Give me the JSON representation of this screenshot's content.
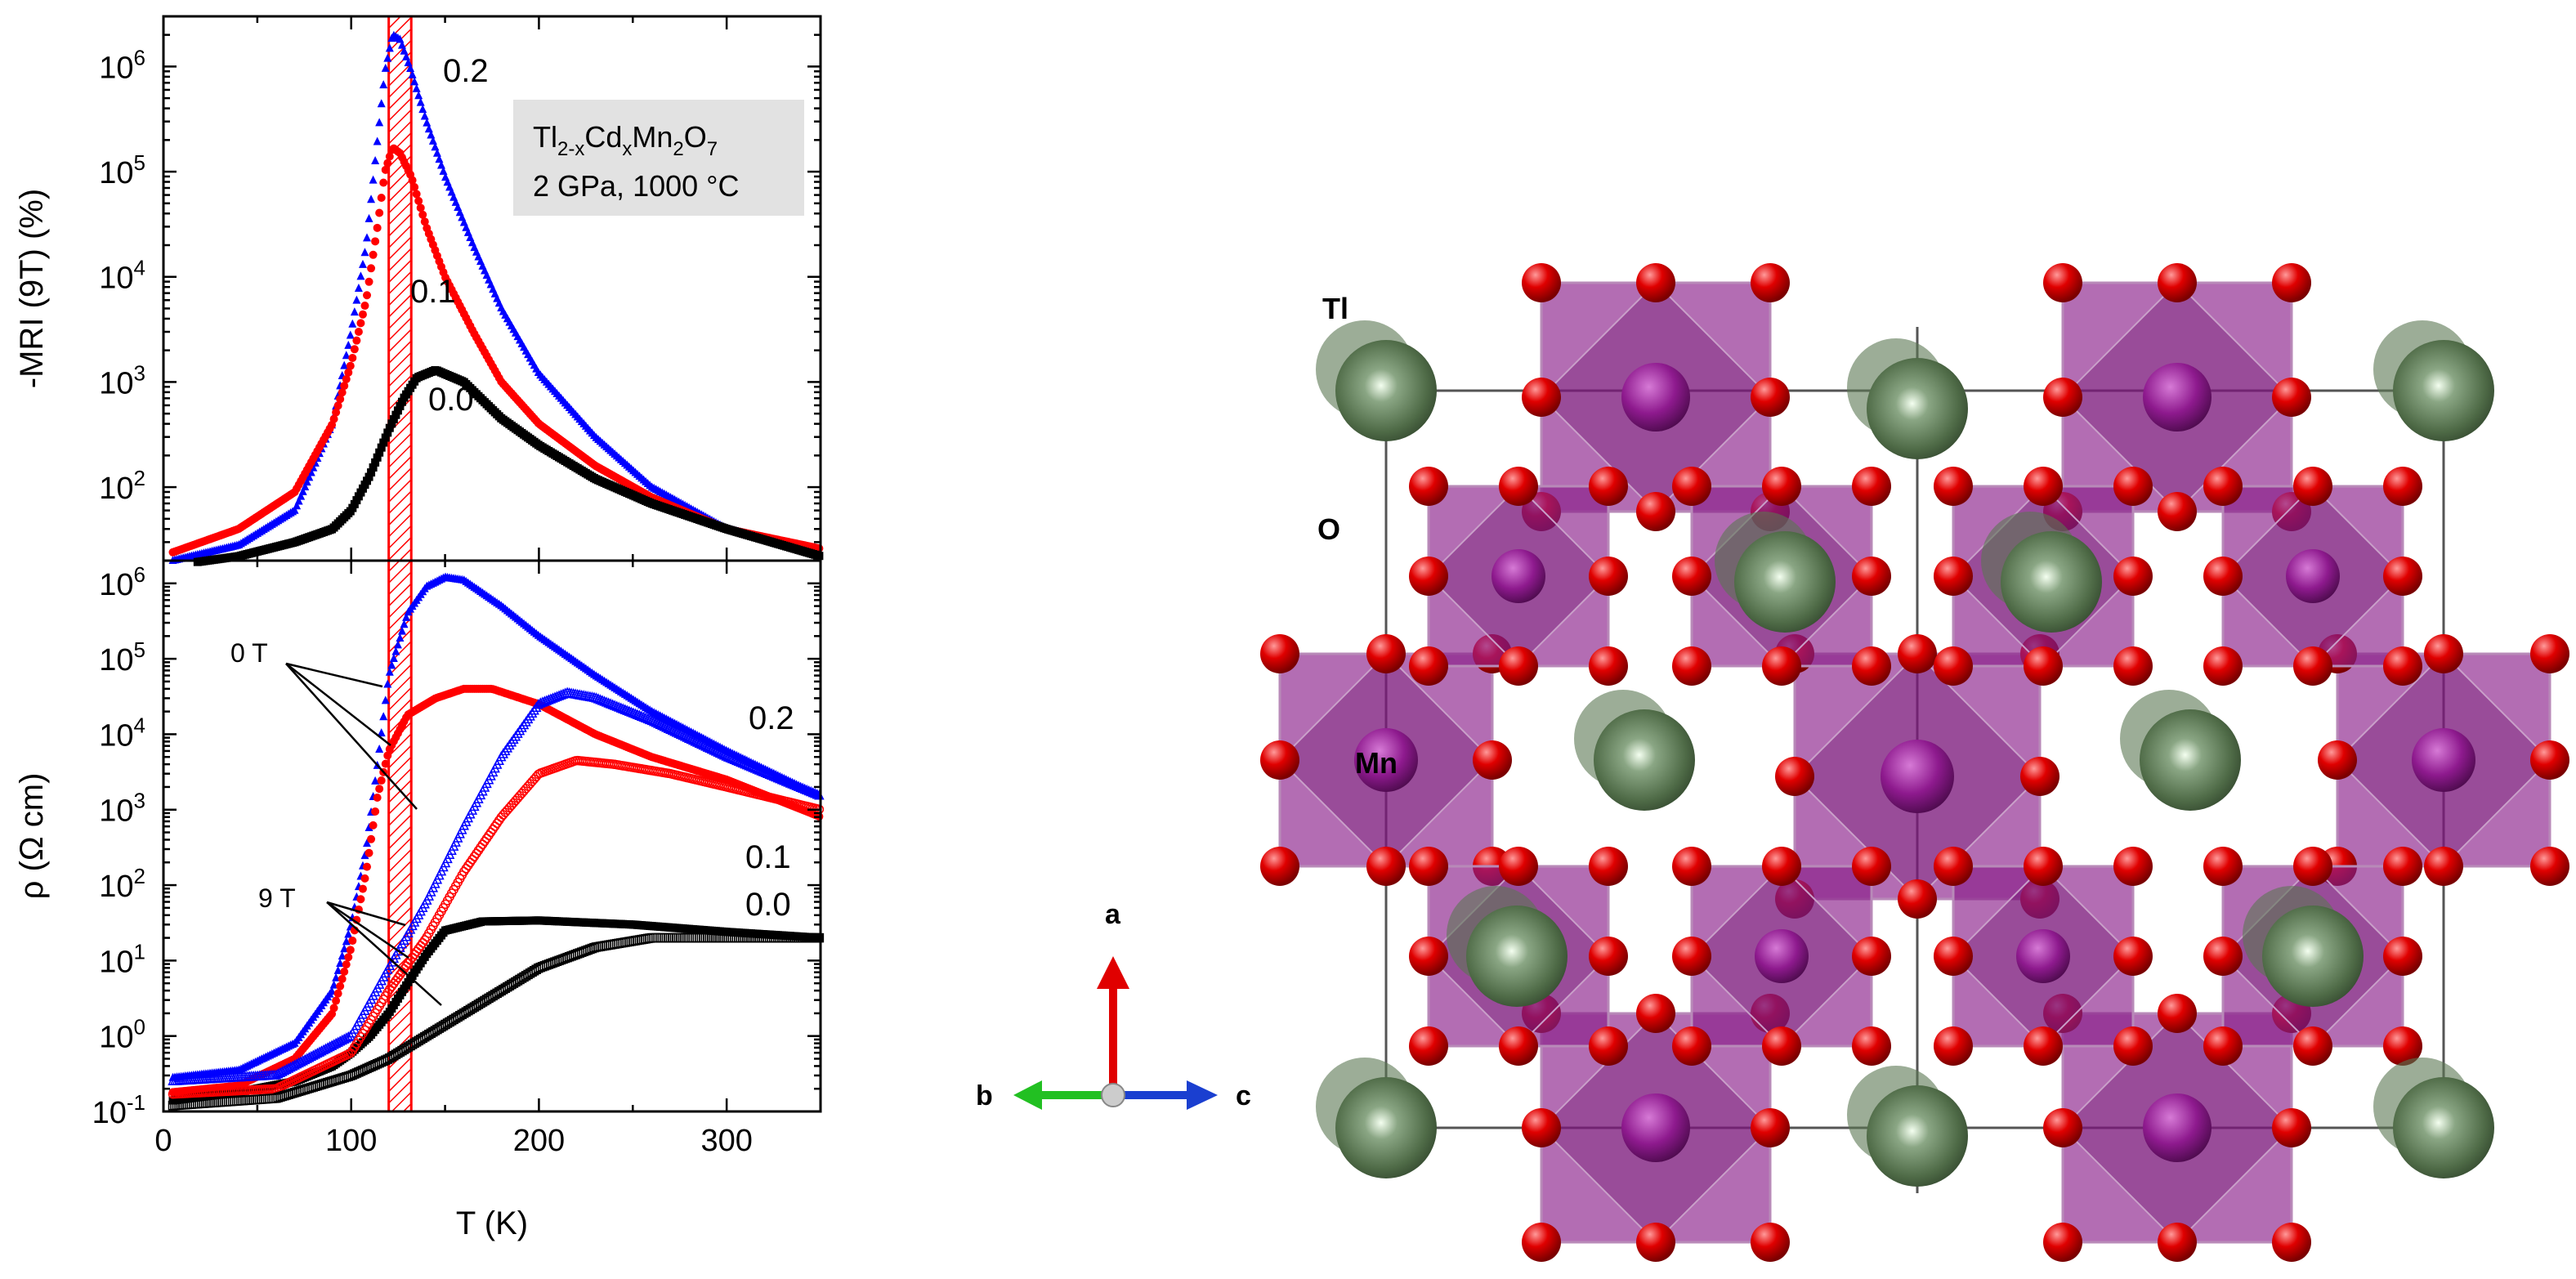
{
  "chart_data": [
    {
      "type": "scatter",
      "panel": "top",
      "ylabel": "-MRI (9T) (%)",
      "xlabel": "",
      "yscale": "log",
      "ylim": [
        20,
        3000000
      ],
      "xlim": [
        0,
        350
      ],
      "y_ticks": [
        "10",
        "10",
        "10",
        "10",
        "10"
      ],
      "y_tick_exp": [
        "2",
        "3",
        "4",
        "5",
        "6"
      ],
      "y_tick_values": [
        100,
        1000,
        10000,
        100000,
        1000000
      ],
      "legend_box": {
        "line1_base": "Tl",
        "line1_sub1": "2-x",
        "line1_mid": "Cd",
        "line1_sub2": "x",
        "line1_mid2": "Mn",
        "line1_sub3": "2",
        "line1_mid3": "O",
        "line1_sub4": "7",
        "line2": "2 GPa, 1000 °C"
      },
      "series": [
        {
          "name": "0.2",
          "color": "#0000ff",
          "marker": "triangle",
          "x": [
            5,
            40,
            70,
            90,
            100,
            108,
            114,
            118,
            122,
            126,
            132,
            140,
            150,
            165,
            180,
            200,
            230,
            260,
            300,
            350
          ],
          "y": [
            20,
            28,
            60,
            400,
            3000,
            20000,
            200000,
            900000,
            2000000,
            1800000,
            900000,
            300000,
            90000,
            20000,
            5000,
            1200,
            300,
            100,
            40,
            24
          ]
        },
        {
          "name": "0.1",
          "color": "#ff0000",
          "marker": "circle",
          "x": [
            5,
            40,
            70,
            90,
            100,
            108,
            114,
            118,
            122,
            126,
            132,
            140,
            150,
            165,
            180,
            200,
            230,
            260,
            300,
            350
          ],
          "y": [
            24,
            40,
            90,
            400,
            1500,
            6000,
            30000,
            100000,
            170000,
            150000,
            90000,
            30000,
            10000,
            3000,
            1000,
            400,
            160,
            80,
            40,
            26
          ]
        },
        {
          "name": "0.0",
          "color": "#000000",
          "marker": "square",
          "x": [
            5,
            40,
            70,
            90,
            100,
            110,
            120,
            128,
            135,
            145,
            160,
            180,
            200,
            230,
            260,
            300,
            350
          ],
          "y": [
            18,
            22,
            30,
            40,
            60,
            130,
            350,
            700,
            1100,
            1300,
            1000,
            450,
            250,
            120,
            70,
            40,
            22
          ]
        }
      ],
      "labels": [
        "0.2",
        "0.1",
        "0.0"
      ],
      "highlight_band_x": [
        120,
        132
      ]
    },
    {
      "type": "scatter",
      "panel": "bottom",
      "ylabel": "ρ (Ω cm)",
      "xlabel": "T (K)",
      "yscale": "log",
      "ylim": [
        0.1,
        2000000
      ],
      "xlim": [
        0,
        350
      ],
      "x_ticks": [
        "0",
        "100",
        "200",
        "300"
      ],
      "x_tick_values": [
        0,
        100,
        200,
        300
      ],
      "y_ticks": [
        "10",
        "10",
        "10",
        "10",
        "10",
        "10",
        "10",
        "10"
      ],
      "y_tick_exp": [
        "-1",
        "0",
        "1",
        "2",
        "3",
        "4",
        "5",
        "6"
      ],
      "y_tick_values": [
        0.1,
        1,
        10,
        100,
        1000,
        10000,
        100000,
        1000000
      ],
      "annotations": {
        "zeroT": "0 T",
        "nineT": "9 T"
      },
      "labels": [
        "0.2",
        "0.1",
        "0.0"
      ],
      "series": [
        {
          "name": "0.2",
          "field": "0 T",
          "color": "#0000ff",
          "marker": "triangle",
          "filled": true,
          "x": [
            5,
            40,
            70,
            90,
            100,
            108,
            114,
            120,
            130,
            140,
            150,
            160,
            180,
            200,
            230,
            260,
            300,
            350
          ],
          "y": [
            0.28,
            0.35,
            0.8,
            4,
            30,
            300,
            4000,
            60000,
            400000,
            900000,
            1200000,
            1100000,
            500000,
            200000,
            60000,
            20000,
            6000,
            1500
          ]
        },
        {
          "name": "0.1",
          "field": "0 T",
          "color": "#ff0000",
          "marker": "circle",
          "filled": true,
          "x": [
            5,
            40,
            70,
            90,
            100,
            108,
            114,
            120,
            130,
            145,
            160,
            175,
            200,
            230,
            260,
            300,
            350
          ],
          "y": [
            0.18,
            0.22,
            0.5,
            2,
            15,
            150,
            1500,
            6000,
            18000,
            30000,
            40000,
            40000,
            25000,
            10000,
            5000,
            2500,
            800
          ]
        },
        {
          "name": "0.0",
          "field": "0 T",
          "color": "#000000",
          "marker": "square",
          "filled": true,
          "x": [
            5,
            40,
            70,
            90,
            100,
            110,
            120,
            130,
            140,
            150,
            170,
            200,
            250,
            300,
            350
          ],
          "y": [
            0.14,
            0.18,
            0.25,
            0.4,
            0.6,
            1,
            2,
            5,
            12,
            25,
            33,
            34,
            30,
            24,
            20
          ]
        },
        {
          "name": "0.2",
          "field": "9 T",
          "color": "#0000ff",
          "marker": "triangle",
          "filled": false,
          "x": [
            5,
            60,
            100,
            120,
            140,
            160,
            180,
            200,
            215,
            230,
            260,
            300,
            350
          ],
          "y": [
            0.25,
            0.3,
            1,
            8,
            60,
            600,
            5000,
            25000,
            35000,
            30000,
            15000,
            5000,
            1500
          ]
        },
        {
          "name": "0.1",
          "field": "9 T",
          "color": "#ff0000",
          "marker": "circle",
          "filled": false,
          "x": [
            5,
            60,
            100,
            120,
            140,
            160,
            180,
            200,
            220,
            240,
            270,
            300,
            350
          ],
          "y": [
            0.17,
            0.2,
            0.6,
            4,
            20,
            150,
            800,
            3000,
            4500,
            4000,
            3000,
            2000,
            1000
          ]
        },
        {
          "name": "0.0",
          "field": "9 T",
          "color": "#000000",
          "marker": "square",
          "filled": false,
          "x": [
            5,
            60,
            100,
            120,
            140,
            160,
            180,
            200,
            230,
            260,
            300,
            350
          ],
          "y": [
            0.12,
            0.15,
            0.3,
            0.5,
            1,
            2,
            4,
            8,
            15,
            20,
            20,
            20
          ]
        }
      ],
      "highlight_band_x": [
        120,
        132
      ]
    }
  ],
  "structure": {
    "atom_labels": {
      "tl": "Tl",
      "o": "O",
      "mn": "Mn"
    },
    "axes": {
      "a": "a",
      "b": "b",
      "c": "c"
    },
    "colors": {
      "octahedron": "#8a1f8a",
      "oxygen": "#e00000",
      "thallium": "#4f6b47",
      "manganese": "#8e1a8e"
    }
  }
}
